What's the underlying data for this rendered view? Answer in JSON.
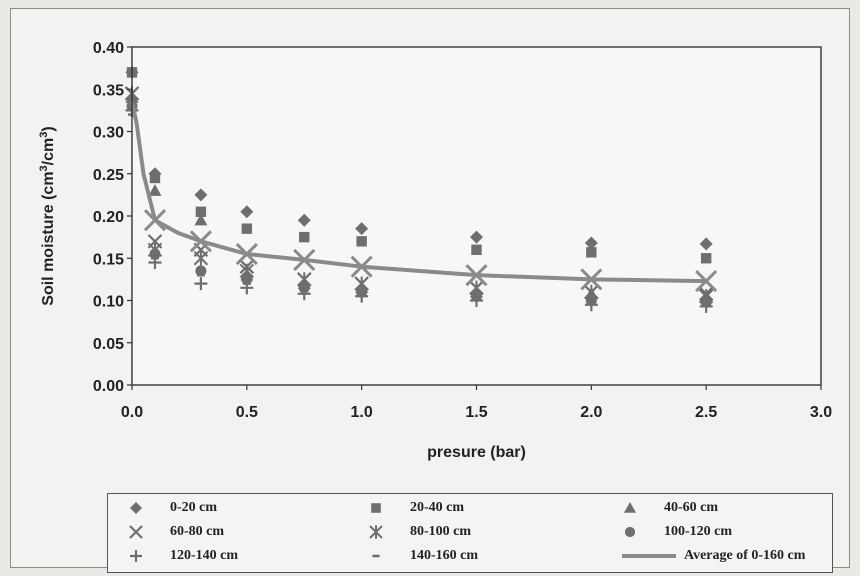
{
  "chart_data": {
    "type": "scatter",
    "xlabel": "presure (bar)",
    "ylabel": "Soil moisture (cm3/cm3)",
    "ylabel_parts": [
      "Soil moisture (cm",
      "3",
      "/cm",
      "3",
      ")"
    ],
    "xlim": [
      0,
      3.0
    ],
    "ylim": [
      0,
      0.4
    ],
    "x_ticks": [
      "0.0",
      "0.5",
      "1.0",
      "1.5",
      "2.0",
      "2.5",
      "3.0"
    ],
    "y_ticks": [
      "0.00",
      "0.05",
      "0.10",
      "0.15",
      "0.20",
      "0.25",
      "0.30",
      "0.35",
      "0.40"
    ],
    "grid": "horizontal",
    "legend_position": "bottom",
    "x": [
      0.0,
      0.1,
      0.3,
      0.5,
      0.75,
      1.0,
      1.5,
      2.0,
      2.5
    ],
    "series": [
      {
        "name": "0-20 cm",
        "marker": "diamond",
        "values": [
          0.37,
          0.25,
          0.225,
          0.205,
          0.195,
          0.185,
          0.175,
          0.168,
          0.167
        ]
      },
      {
        "name": "20-40 cm",
        "marker": "square",
        "values": [
          0.37,
          0.245,
          0.205,
          0.185,
          0.175,
          0.17,
          0.16,
          0.157,
          0.15
        ]
      },
      {
        "name": "40-60 cm",
        "marker": "triangle",
        "values": [
          0.34,
          0.23,
          0.195,
          0.13,
          0.12,
          0.115,
          0.11,
          0.108,
          0.105
        ]
      },
      {
        "name": "60-80 cm",
        "marker": "x",
        "values": [
          0.345,
          0.17,
          0.16,
          0.14,
          0.125,
          0.12,
          0.115,
          0.11,
          0.108
        ]
      },
      {
        "name": "80-100 cm",
        "marker": "star",
        "values": [
          0.345,
          0.16,
          0.15,
          0.135,
          0.125,
          0.12,
          0.115,
          0.11,
          0.105
        ]
      },
      {
        "name": "100-120 cm",
        "marker": "circle",
        "values": [
          0.33,
          0.155,
          0.135,
          0.125,
          0.115,
          0.11,
          0.105,
          0.1,
          0.098
        ]
      },
      {
        "name": "120-140 cm",
        "marker": "plus",
        "values": [
          0.325,
          0.145,
          0.12,
          0.115,
          0.108,
          0.105,
          0.1,
          0.095,
          0.093
        ]
      },
      {
        "name": "140-160 cm",
        "marker": "dash",
        "values": [
          0.32,
          0.15,
          0.13,
          0.12,
          0.115,
          0.11,
          0.105,
          0.1,
          0.098
        ]
      }
    ],
    "average": {
      "name": "Average of 0-160 cm",
      "marker": "X",
      "x": [
        0.0,
        0.02,
        0.05,
        0.1,
        0.2,
        0.3,
        0.5,
        0.75,
        1.0,
        1.5,
        2.0,
        2.5
      ],
      "values": [
        0.335,
        0.31,
        0.25,
        0.195,
        0.18,
        0.17,
        0.155,
        0.148,
        0.14,
        0.13,
        0.125,
        0.123
      ]
    },
    "colors": {
      "markers": "#6e6e6e",
      "average_line": "#8a8a8a",
      "axis": "#333333",
      "grid": "#b4b4b4"
    }
  }
}
